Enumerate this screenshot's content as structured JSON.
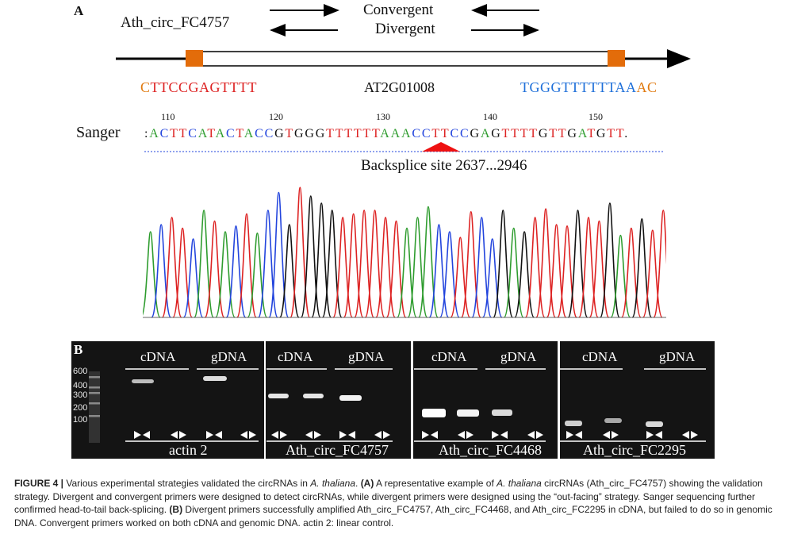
{
  "panelA": {
    "label": "A",
    "circ_name": "Ath_circ_FC4757",
    "convergent": "Convergent",
    "divergent": "Divergent",
    "left_seq": "CTTCCGAGTTTT",
    "gene": "AT2G01008",
    "right_seq_blue": "TGGGTTTTTTAA",
    "right_seq_orange": "AC",
    "sanger_label": "Sanger",
    "pos_ticks": [
      "110",
      "120",
      "130",
      "140",
      "150"
    ],
    "sanger_seq": ":ACTTCATACTACCGTGGGTTTTTTAAACCTTCCGAGTTTTGTTGATGTT.",
    "backsplice": "Backsplice site 2637...2946",
    "colors": {
      "A": "#2e9c2e",
      "C": "#2244dd",
      "G": "#111111",
      "T": "#dd2222",
      "orange": "#e07a10",
      "blue": "#1e6fd9",
      "red": "#dd2222"
    }
  },
  "panelB": {
    "label": "B",
    "ladder": [
      "600",
      "400",
      "300",
      "200",
      "100"
    ],
    "cdna": "cDNA",
    "gdna": "gDNA",
    "genes": [
      "actin 2",
      "Ath_circ_FC4757",
      "Ath_circ_FC4468",
      "Ath_circ_FC2295"
    ]
  },
  "caption": {
    "fig": "FIGURE 4 |",
    "t1": " Various experimental strategies validated the circRNAs in ",
    "species": "A. thaliana",
    "t2": ". ",
    "pa": "(A)",
    "t3": " A representative example of ",
    "species2": "A. thaliana",
    "t4": " circRNAs (Ath_circ_FC4757) showing the validation strategy. Divergent and convergent primers were designed to detect circRNAs, while divergent primers were designed using the “out-facing” strategy. Sanger sequencing further confirmed head-to-tail back-splicing. ",
    "pb": "(B)",
    "t5": " Divergent primers successfully amplified Ath_circ_FC4757, Ath_circ_FC4468, and Ath_circ_FC2295 in cDNA, but failed to do so in genomic DNA. Convergent primers worked on both cDNA and genomic DNA. actin 2: linear control."
  }
}
